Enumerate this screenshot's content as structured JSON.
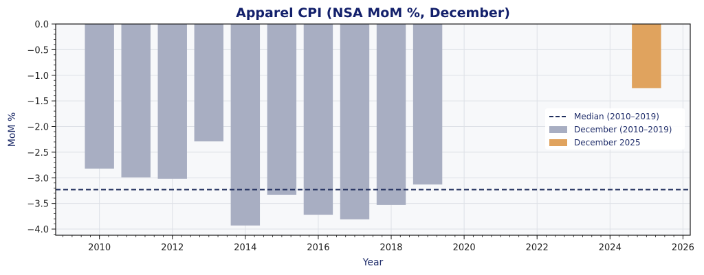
{
  "chart_data": {
    "type": "bar",
    "title": "Apparel CPI (NSA MoM %, December)",
    "xlabel": "Year",
    "ylabel": "MoM %",
    "xlim": [
      2008.8,
      2026.2
    ],
    "ylim": [
      -4.12,
      0.0
    ],
    "x_ticks": [
      2010,
      2012,
      2014,
      2016,
      2018,
      2020,
      2022,
      2024,
      2026
    ],
    "y_ticks": [
      0.0,
      -0.5,
      -1.0,
      -1.5,
      -2.0,
      -2.5,
      -3.0,
      -3.5,
      -4.0
    ],
    "grid": true,
    "legend_position": "center-right",
    "bar_width_years": 0.8,
    "series": [
      {
        "name": "December (2010–2019)",
        "kind": "bar",
        "color": "#a8aec2",
        "x": [
          2010,
          2011,
          2012,
          2013,
          2014,
          2015,
          2016,
          2017,
          2018,
          2019
        ],
        "values": [
          -2.82,
          -2.99,
          -3.02,
          -2.29,
          -3.93,
          -3.33,
          -3.72,
          -3.81,
          -3.53,
          -3.13
        ]
      },
      {
        "name": "December 2025",
        "kind": "bar",
        "color": "#e0a35e",
        "x": [
          2025
        ],
        "values": [
          -1.25
        ]
      },
      {
        "name": "Median (2010–2019)",
        "kind": "hline",
        "color": "#1f2d5c",
        "value": -3.23
      }
    ],
    "colors": {
      "title": "#13206b",
      "axis_label": "#1f2d6a",
      "plot_background": "#f7f8fa",
      "grid": "#dde0e6"
    }
  }
}
